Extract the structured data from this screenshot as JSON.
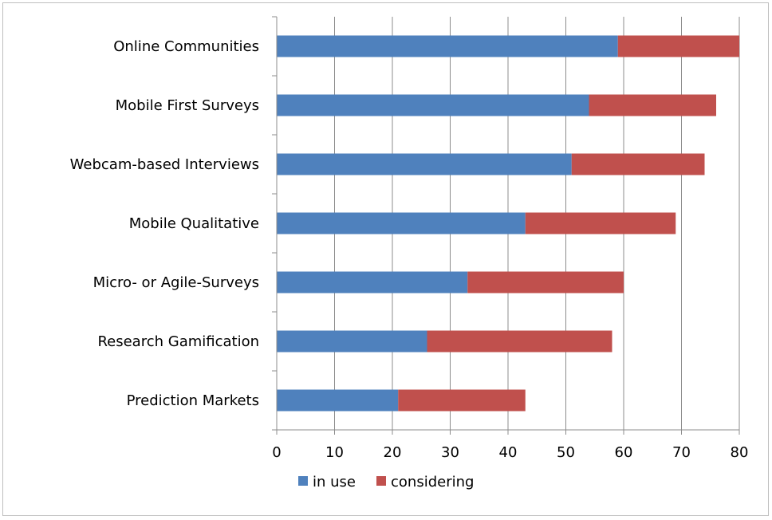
{
  "chart_data": {
    "type": "bar",
    "orientation": "horizontal",
    "stacked": true,
    "categories": [
      "Online Communities",
      "Mobile First Surveys",
      "Webcam-based Interviews",
      "Mobile Qualitative",
      "Micro- or Agile-Surveys",
      "Research Gamification",
      "Prediction Markets"
    ],
    "series": [
      {
        "name": "in use",
        "color": "#4f81bd",
        "values": [
          59,
          54,
          51,
          43,
          33,
          26,
          21
        ]
      },
      {
        "name": "considering",
        "color": "#c0504d",
        "values": [
          21,
          22,
          23,
          26,
          27,
          32,
          22
        ]
      }
    ],
    "xlim": [
      0,
      80
    ],
    "xticks": [
      "0",
      "10",
      "20",
      "30",
      "40",
      "50",
      "60",
      "70",
      "80"
    ],
    "grid": true,
    "legend_position": "bottom"
  }
}
